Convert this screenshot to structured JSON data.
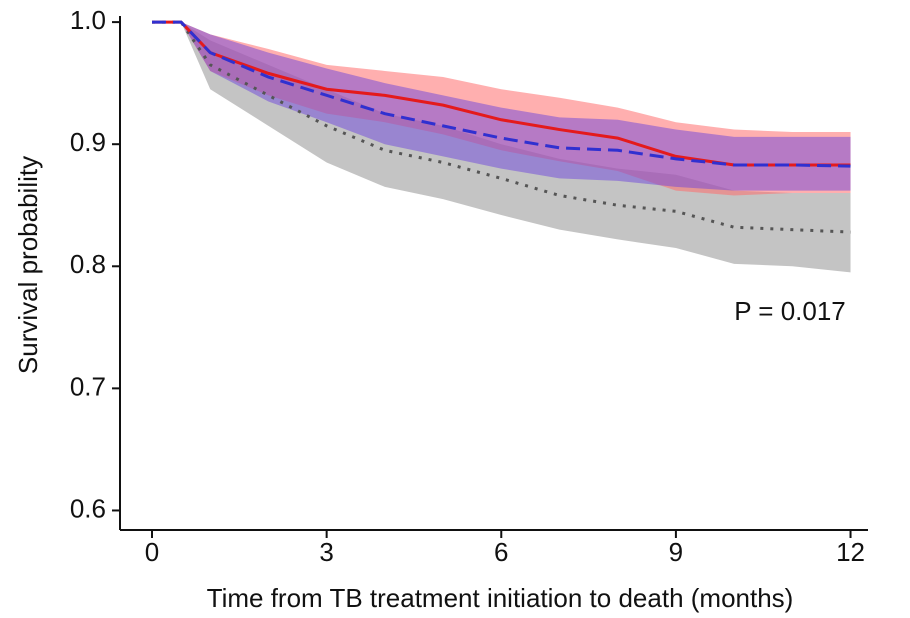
{
  "chart_data": {
    "type": "line",
    "x_label": "Time from TB treatment initiation to death (months)",
    "y_label": "Survival probability",
    "annotation": "P = 0.017",
    "x": [
      0,
      0.5,
      1,
      2,
      3,
      4,
      5,
      6,
      7,
      8,
      9,
      10,
      11,
      12
    ],
    "series": [
      {
        "color": "#555555",
        "style": "dotted",
        "band_color": "#c4c4c4",
        "values": [
          1.0,
          1.0,
          0.965,
          0.94,
          0.915,
          0.895,
          0.885,
          0.872,
          0.858,
          0.85,
          0.845,
          0.832,
          0.83,
          0.828
        ],
        "upper": [
          1.0,
          1.0,
          0.985,
          0.965,
          0.945,
          0.925,
          0.915,
          0.9,
          0.888,
          0.88,
          0.875,
          0.862,
          0.86,
          0.86
        ],
        "lower": [
          1.0,
          1.0,
          0.945,
          0.915,
          0.885,
          0.865,
          0.855,
          0.842,
          0.83,
          0.822,
          0.815,
          0.802,
          0.8,
          0.795
        ]
      },
      {
        "color": "#e41a1c",
        "style": "solid",
        "band_color": "rgba(255,110,110,0.55)",
        "values": [
          1.0,
          1.0,
          0.975,
          0.958,
          0.945,
          0.94,
          0.932,
          0.92,
          0.912,
          0.905,
          0.89,
          0.883,
          0.883,
          0.883
        ],
        "upper": [
          1.0,
          1.0,
          0.99,
          0.978,
          0.965,
          0.96,
          0.955,
          0.945,
          0.938,
          0.93,
          0.918,
          0.912,
          0.91,
          0.91
        ],
        "lower": [
          1.0,
          1.0,
          0.96,
          0.94,
          0.925,
          0.918,
          0.908,
          0.895,
          0.886,
          0.878,
          0.862,
          0.858,
          0.86,
          0.86
        ]
      },
      {
        "color": "#3030d0",
        "style": "dashed",
        "band_color": "rgba(110,70,220,0.5)",
        "values": [
          1.0,
          1.0,
          0.975,
          0.955,
          0.94,
          0.925,
          0.915,
          0.905,
          0.897,
          0.895,
          0.888,
          0.883,
          0.883,
          0.882
        ],
        "upper": [
          1.0,
          1.0,
          0.99,
          0.975,
          0.962,
          0.95,
          0.94,
          0.93,
          0.922,
          0.92,
          0.912,
          0.906,
          0.906,
          0.906
        ],
        "lower": [
          1.0,
          1.0,
          0.96,
          0.935,
          0.918,
          0.9,
          0.89,
          0.88,
          0.872,
          0.87,
          0.865,
          0.862,
          0.862,
          0.862
        ]
      }
    ],
    "xlim": [
      -0.55,
      12.3
    ],
    "xticks": [
      0,
      3,
      6,
      9,
      12
    ],
    "ylim": [
      0.584,
      1.005
    ],
    "yticks": [
      0.6,
      0.7,
      0.8,
      0.9,
      {
        "value": 1,
        "label": "1.0"
      }
    ]
  }
}
